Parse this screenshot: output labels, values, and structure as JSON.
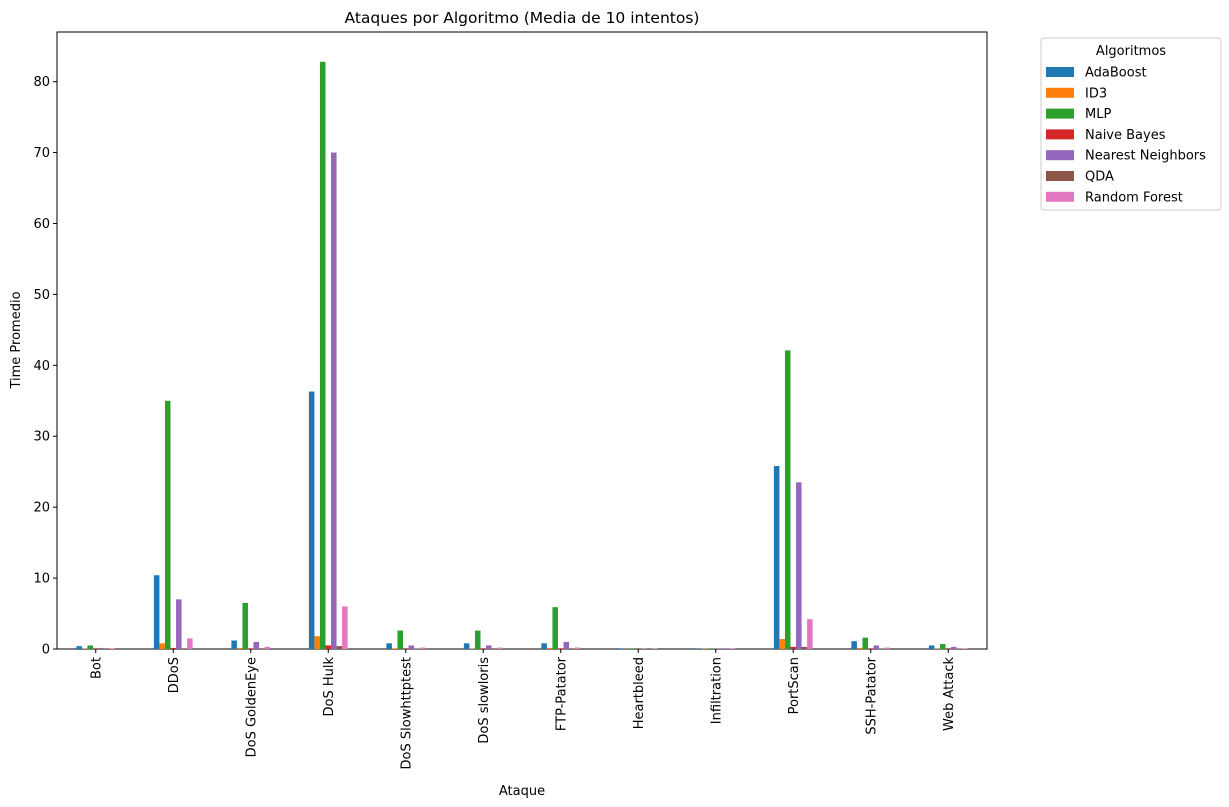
{
  "chart_data": {
    "type": "bar",
    "title": "Ataques por Algoritmo (Media de 10 intentos)",
    "xlabel": "Ataque",
    "ylabel": "Time Promedio",
    "ylim": [
      0,
      87
    ],
    "yticks": [
      0,
      10,
      20,
      30,
      40,
      50,
      60,
      70,
      80
    ],
    "grid": false,
    "legend": {
      "title": "Algoritmos",
      "placement": "outside-top-right"
    },
    "categories": [
      "Bot",
      "DDoS",
      "DoS GoldenEye",
      "DoS Hulk",
      "DoS Slowhttptest",
      "DoS slowloris",
      "FTP-Patator",
      "Heartbleed",
      "Infiltration",
      "PortScan",
      "SSH-Patator",
      "Web Attack"
    ],
    "series": [
      {
        "name": "AdaBoost",
        "color": "#1f77b4",
        "values": [
          0.4,
          10.4,
          1.2,
          36.3,
          0.8,
          0.8,
          0.8,
          0.1,
          0.1,
          25.8,
          1.1,
          0.5
        ]
      },
      {
        "name": "ID3",
        "color": "#ff7f0e",
        "values": [
          0.05,
          0.8,
          0.15,
          1.8,
          0.1,
          0.05,
          0.15,
          0.02,
          0.05,
          1.4,
          0.15,
          0.05
        ]
      },
      {
        "name": "MLP",
        "color": "#2ca02c",
        "values": [
          0.5,
          35.0,
          6.5,
          82.8,
          2.6,
          2.6,
          5.9,
          0.1,
          0.1,
          42.1,
          1.6,
          0.7
        ]
      },
      {
        "name": "Naive Bayes",
        "color": "#d62728",
        "values": [
          0.1,
          0.15,
          0.1,
          0.5,
          0.1,
          0.1,
          0.1,
          0.02,
          0.05,
          0.3,
          0.1,
          0.1
        ]
      },
      {
        "name": "Nearest Neighbors",
        "color": "#9467bd",
        "values": [
          0.15,
          7.0,
          1.0,
          70.0,
          0.5,
          0.5,
          1.0,
          0.05,
          0.1,
          23.5,
          0.5,
          0.3
        ]
      },
      {
        "name": "QDA",
        "color": "#8c564b",
        "values": [
          0.1,
          0.1,
          0.1,
          0.4,
          0.05,
          0.1,
          0.1,
          0.02,
          0.05,
          0.3,
          0.05,
          0.05
        ]
      },
      {
        "name": "Random Forest",
        "color": "#e377c2",
        "values": [
          0.1,
          1.5,
          0.3,
          6.0,
          0.2,
          0.2,
          0.2,
          0.05,
          0.1,
          4.2,
          0.2,
          0.1
        ]
      }
    ]
  }
}
